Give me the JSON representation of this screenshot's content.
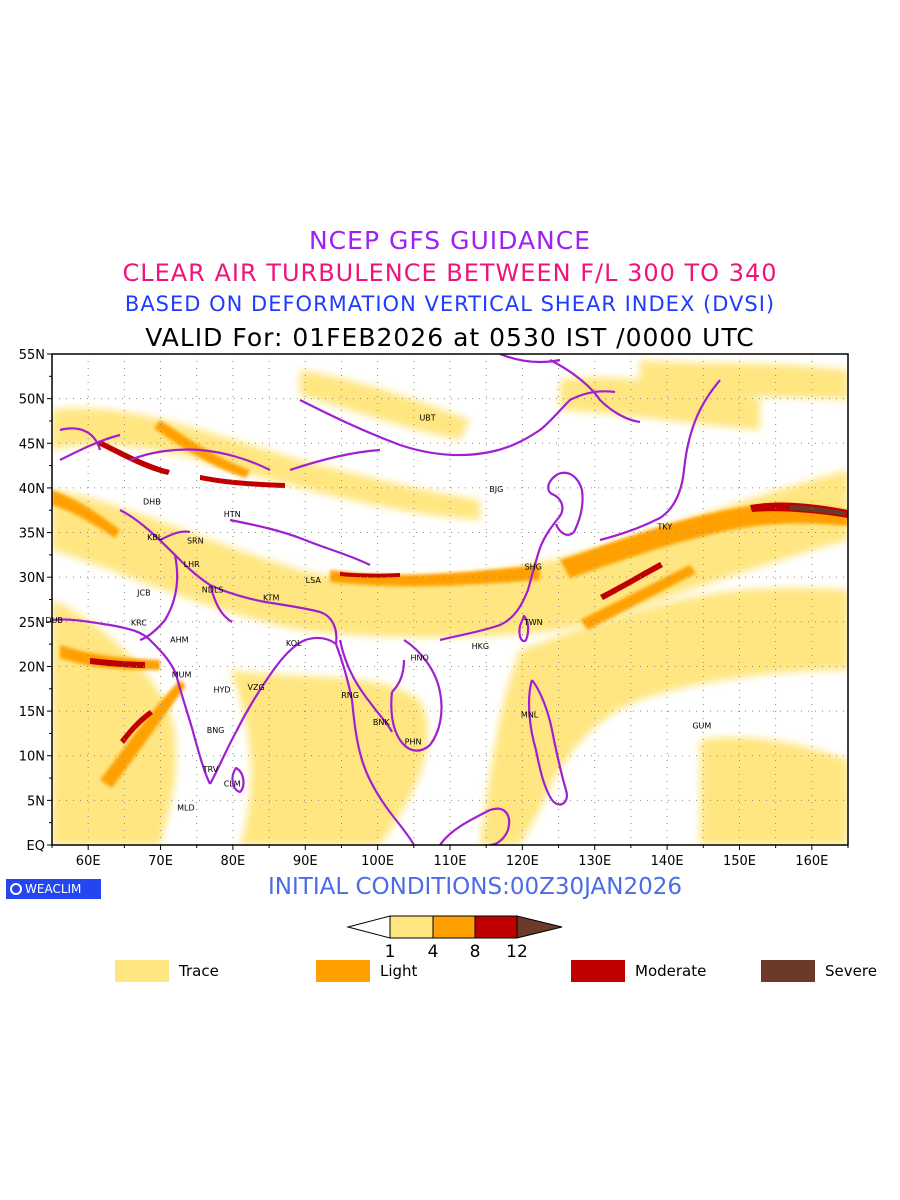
{
  "titles": {
    "line1": "NCEP GFS GUIDANCE",
    "line2": "CLEAR AIR TURBULENCE BETWEEN F/L 300 TO 340",
    "line3": "BASED ON DEFORMATION VERTICAL SHEAR INDEX (DVSI)",
    "line4": "VALID For: 01FEB2026 at 0530 IST /0000 UTC"
  },
  "map": {
    "lat_labels": [
      "55N",
      "50N",
      "45N",
      "40N",
      "35N",
      "30N",
      "25N",
      "20N",
      "15N",
      "10N",
      "5N",
      "EQ"
    ],
    "lon_labels": [
      "60E",
      "70E",
      "80E",
      "90E",
      "100E",
      "110E",
      "120E",
      "130E",
      "140E",
      "150E",
      "160E"
    ],
    "lat_range": [
      0,
      55
    ],
    "lon_range": [
      55,
      165
    ],
    "grid": "dotted",
    "cities": [
      {
        "code": "UBT",
        "lon": 106.9,
        "lat": 47.9
      },
      {
        "code": "BJG",
        "lon": 116.4,
        "lat": 39.9
      },
      {
        "code": "DHB",
        "lon": 68.8,
        "lat": 38.5
      },
      {
        "code": "HTN",
        "lon": 79.9,
        "lat": 37.1
      },
      {
        "code": "KBL",
        "lon": 69.2,
        "lat": 34.5
      },
      {
        "code": "SRN",
        "lon": 74.8,
        "lat": 34.1
      },
      {
        "code": "LHR",
        "lon": 74.3,
        "lat": 31.5
      },
      {
        "code": "TKY",
        "lon": 139.7,
        "lat": 35.7
      },
      {
        "code": "SHG",
        "lon": 121.5,
        "lat": 31.2
      },
      {
        "code": "JCB",
        "lon": 67.7,
        "lat": 28.3
      },
      {
        "code": "NDLS",
        "lon": 77.2,
        "lat": 28.6
      },
      {
        "code": "LSA",
        "lon": 91.1,
        "lat": 29.7
      },
      {
        "code": "KTM",
        "lon": 85.3,
        "lat": 27.7
      },
      {
        "code": "DUB",
        "lon": 55.3,
        "lat": 25.2
      },
      {
        "code": "KRC",
        "lon": 67.0,
        "lat": 24.9
      },
      {
        "code": "AHM",
        "lon": 72.6,
        "lat": 23.0
      },
      {
        "code": "KOL",
        "lon": 88.4,
        "lat": 22.6
      },
      {
        "code": "TWN",
        "lon": 121.5,
        "lat": 25.0
      },
      {
        "code": "HKG",
        "lon": 114.2,
        "lat": 22.3
      },
      {
        "code": "HNO",
        "lon": 105.8,
        "lat": 21.0
      },
      {
        "code": "MUM",
        "lon": 72.9,
        "lat": 19.1
      },
      {
        "code": "HYD",
        "lon": 78.5,
        "lat": 17.4
      },
      {
        "code": "VZG",
        "lon": 83.2,
        "lat": 17.7
      },
      {
        "code": "RNG",
        "lon": 96.2,
        "lat": 16.8
      },
      {
        "code": "BNK",
        "lon": 100.5,
        "lat": 13.8
      },
      {
        "code": "MNL",
        "lon": 121.0,
        "lat": 14.6
      },
      {
        "code": "GUM",
        "lon": 144.8,
        "lat": 13.4
      },
      {
        "code": "BNG",
        "lon": 77.6,
        "lat": 12.9
      },
      {
        "code": "PHN",
        "lon": 104.9,
        "lat": 11.6
      },
      {
        "code": "TRV",
        "lon": 76.9,
        "lat": 8.5
      },
      {
        "code": "CLM",
        "lon": 79.9,
        "lat": 6.9
      },
      {
        "code": "MLD",
        "lon": 73.5,
        "lat": 4.2
      }
    ]
  },
  "colors": {
    "trace": "#ffe680",
    "light": "#ffa000",
    "moderate": "#c00000",
    "severe": "#6b3a2a",
    "coast": "#a020d0"
  },
  "footer": {
    "logo_text": "WEACLIM",
    "initial_conditions": "INITIAL CONDITIONS:00Z30JAN2026"
  },
  "colorbar": {
    "ticks": [
      "1",
      "4",
      "8",
      "12"
    ]
  },
  "legend": [
    {
      "label": "Trace",
      "color": "#ffe680"
    },
    {
      "label": "Light",
      "color": "#ffa000"
    },
    {
      "label": "Moderate",
      "color": "#c00000"
    },
    {
      "label": "Severe",
      "color": "#6b3a2a"
    }
  ]
}
